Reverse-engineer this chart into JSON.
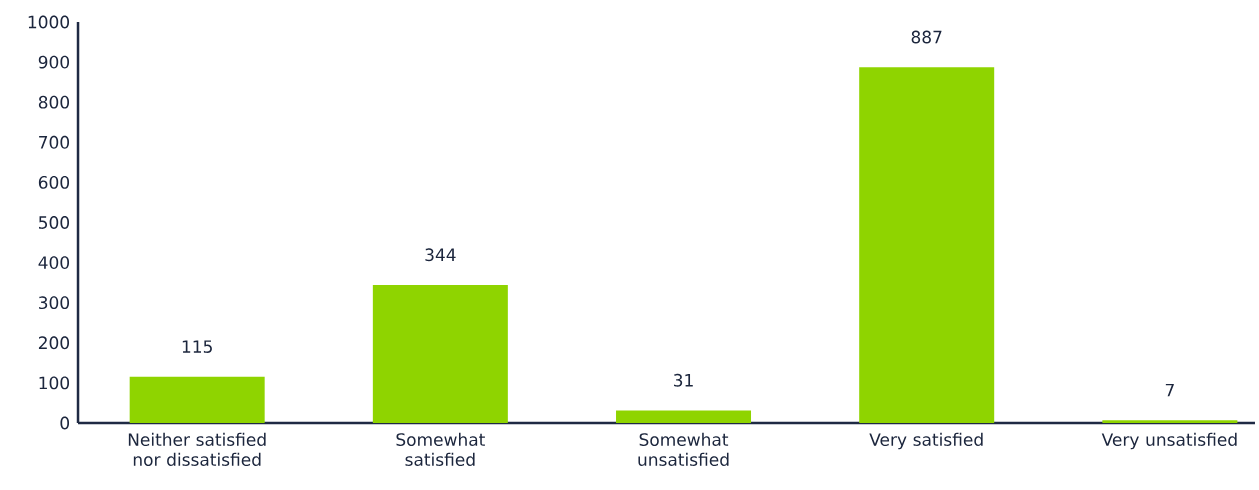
{
  "chart_data": {
    "type": "bar",
    "categories": [
      "Neither satisfied nor dissatisfied",
      "Somewhat satisfied",
      "Somewhat unsatisfied",
      "Very satisfied",
      "Very unsatisfied"
    ],
    "values": [
      115,
      344,
      31,
      887,
      7
    ],
    "color": "#8fd400",
    "ylim": [
      0,
      1000
    ],
    "yticks": [
      0,
      100,
      200,
      300,
      400,
      500,
      600,
      700,
      800,
      900,
      1000
    ],
    "data_labels": true
  }
}
